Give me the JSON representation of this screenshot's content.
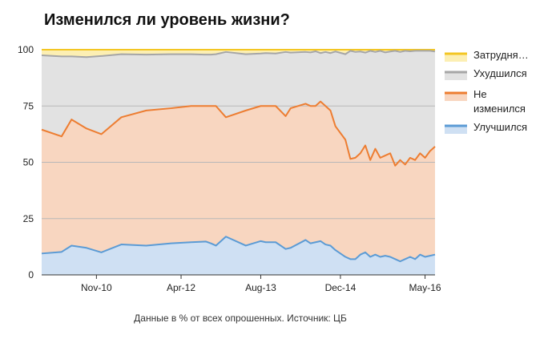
{
  "title": "Изменился ли уровень жизни?",
  "caption": "Данные в % от всех опрошенных. Источник: ЦБ",
  "chart_data": {
    "type": "area",
    "stacked": true,
    "ylim": [
      0,
      100
    ],
    "yticks": [
      0,
      25,
      50,
      75,
      100
    ],
    "x_tick_labels": [
      "Nov-10",
      "Apr-12",
      "Aug-13",
      "Dec-14",
      "May-16"
    ],
    "grid": true,
    "legend_position": "right",
    "colors": {
      "Затрудняюсь ответить": "#f3c623",
      "Ухудшился": "#a6a6a6",
      "Не изменился": "#ed7d31",
      "Улучшился": "#5b9bd5"
    },
    "fill_colors": {
      "Затрудняюсь ответить": "#fcefb3",
      "Ухудшился": "#e2e2e2",
      "Не изменился": "#f8d6c0",
      "Улучшился": "#cfe0f3"
    },
    "x": [
      "2009-12",
      "2010-04",
      "2010-06",
      "2010-09",
      "2010-12",
      "2011-04",
      "2011-09",
      "2012-02",
      "2012-06",
      "2012-09",
      "2012-10",
      "2012-11",
      "2013-01",
      "2013-05",
      "2013-08",
      "2013-09",
      "2013-11",
      "2014-01",
      "2014-02",
      "2014-05",
      "2014-06",
      "2014-07",
      "2014-08",
      "2014-09",
      "2014-10",
      "2014-11",
      "2015-01",
      "2015-02",
      "2015-03",
      "2015-04",
      "2015-05",
      "2015-06",
      "2015-07",
      "2015-08",
      "2015-09",
      "2015-10",
      "2015-11",
      "2015-12",
      "2016-01",
      "2016-02",
      "2016-03",
      "2016-04",
      "2016-05",
      "2016-06",
      "2016-07"
    ],
    "series": [
      {
        "name": "Улучшился",
        "values": [
          9.5,
          10.2,
          13,
          12,
          10,
          13.5,
          13,
          14,
          14.5,
          14.8,
          14,
          13,
          17,
          13,
          15,
          14.5,
          14.5,
          11.5,
          12,
          15.5,
          14,
          14.5,
          15,
          13.5,
          13,
          11,
          8,
          7,
          7,
          9,
          10,
          8,
          9,
          8,
          8.5,
          8,
          7,
          6,
          7,
          8,
          7,
          9,
          8,
          8.5,
          9
        ]
      },
      {
        "name": "Не изменился",
        "values": [
          64.5,
          61.5,
          69,
          65,
          62.5,
          70,
          73,
          74,
          75,
          75,
          75,
          75,
          70,
          73,
          75,
          75,
          75,
          70.5,
          74,
          76,
          75,
          75,
          77,
          75,
          73,
          66,
          60,
          51.5,
          52,
          54,
          57.5,
          51,
          56,
          52,
          53,
          54,
          48.5,
          51,
          49,
          52,
          51,
          54,
          52,
          55,
          57
        ]
      },
      {
        "name": "Ухудшился",
        "values": [
          97.5,
          97,
          97,
          96.7,
          97.2,
          98,
          97.8,
          98,
          98,
          97.8,
          97.8,
          98,
          99,
          98,
          98.3,
          98.5,
          98.3,
          99,
          98.7,
          99,
          98.8,
          99.3,
          98.5,
          99,
          98.5,
          99.2,
          98,
          99.5,
          99,
          99.2,
          98.7,
          99.5,
          99,
          99.5,
          98.8,
          99.2,
          99.5,
          99,
          99.5,
          99.3,
          99.5,
          99.5,
          99.5,
          99.5,
          99.2
        ]
      },
      {
        "name": "Затрудняюсь ответить",
        "values": [
          100,
          100,
          100,
          100,
          100,
          100,
          100,
          100,
          100,
          100,
          100,
          100,
          100,
          100,
          100,
          100,
          100,
          100,
          100,
          100,
          100,
          100,
          100,
          100,
          100,
          100,
          100,
          100,
          100,
          100,
          100,
          100,
          100,
          100,
          100,
          100,
          100,
          100,
          100,
          100,
          100,
          100,
          100,
          100,
          100
        ]
      }
    ],
    "legend": [
      {
        "label": "Затрудня…",
        "key": "Затрудняюсь ответить"
      },
      {
        "label": "Ухудшился",
        "key": "Ухудшился"
      },
      {
        "label": "Не изменился",
        "lines": [
          "Не",
          "изменился"
        ],
        "key": "Не изменился"
      },
      {
        "label": "Улучшился",
        "key": "Улучшился"
      }
    ]
  }
}
